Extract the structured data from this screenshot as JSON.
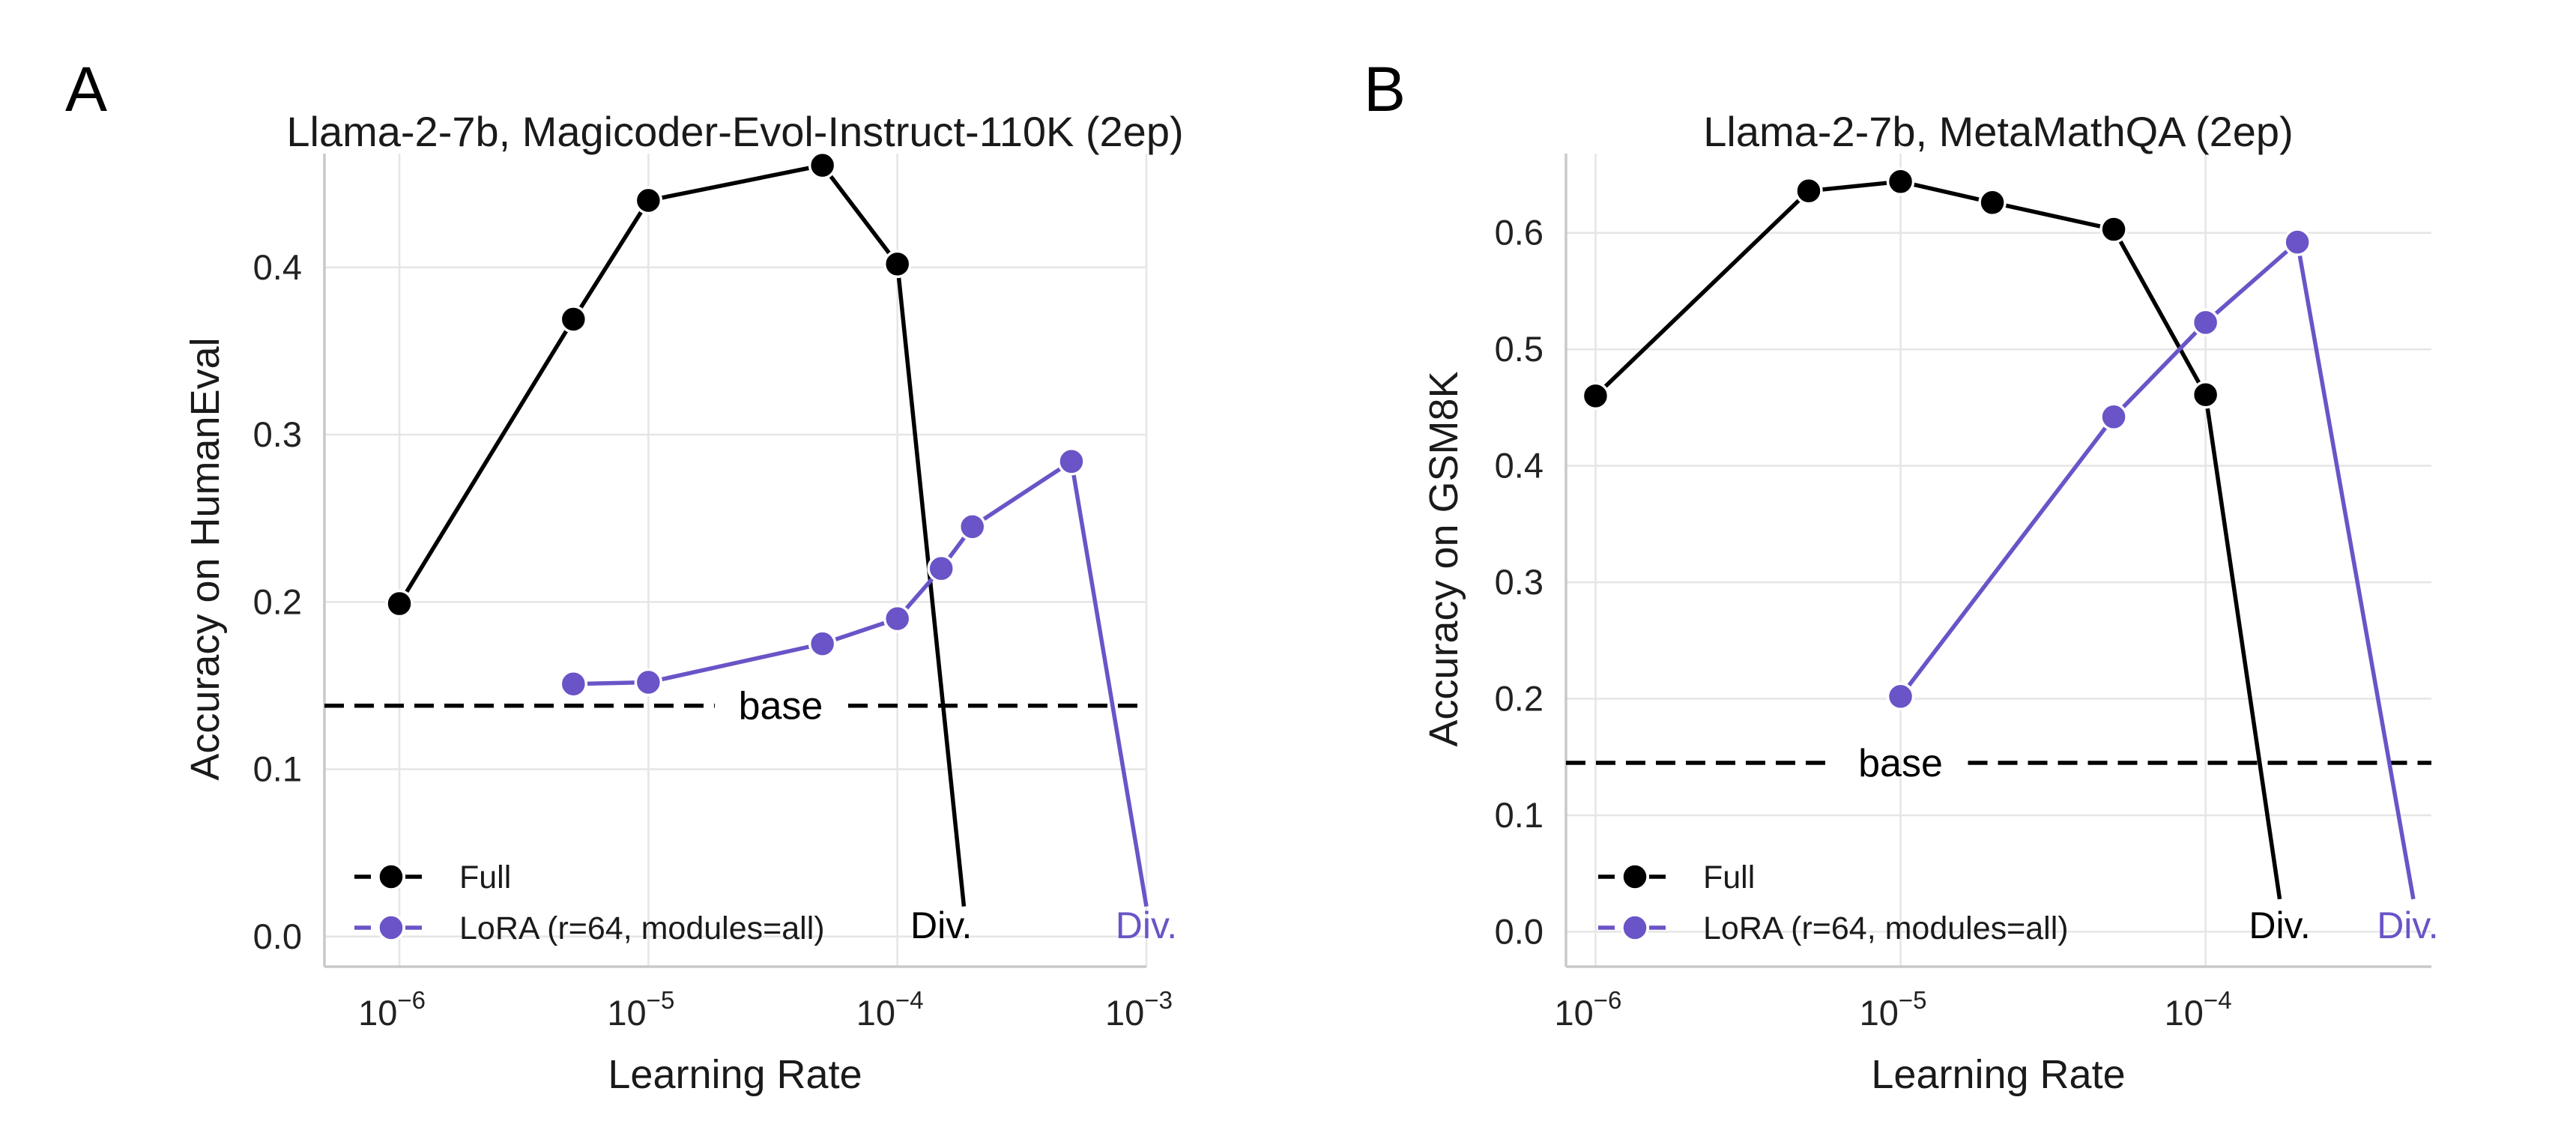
{
  "colors": {
    "full": "#000000",
    "lora": "#6a54c7",
    "base": "#000000",
    "background": "#ffffff"
  },
  "chart_data": [
    {
      "panel_label": "A",
      "type": "line",
      "title": "Llama-2-7b, Magicoder-Evol-Instruct-110K (2ep)",
      "xlabel": "Learning Rate",
      "ylabel": "Accuracy on HumanEval",
      "xscale": "log",
      "xlim": [
        5e-07,
        0.001
      ],
      "ylim": [
        -0.018,
        0.468
      ],
      "grid": true,
      "legend_position": "lower-left",
      "xticks": [
        {
          "value": 1e-06,
          "base": "10",
          "exp": "−6"
        },
        {
          "value": 1e-05,
          "base": "10",
          "exp": "−5"
        },
        {
          "value": 0.0001,
          "base": "10",
          "exp": "−4"
        },
        {
          "value": 0.001,
          "base": "10",
          "exp": "−3"
        }
      ],
      "yticks": [
        {
          "value": 0.0,
          "label": "0.0"
        },
        {
          "value": 0.1,
          "label": "0.1"
        },
        {
          "value": 0.2,
          "label": "0.2"
        },
        {
          "value": 0.3,
          "label": "0.3"
        },
        {
          "value": 0.4,
          "label": "0.4"
        }
      ],
      "baseline": {
        "value": 0.138,
        "label": "base",
        "label_x": 3.4e-05
      },
      "series": [
        {
          "name": "Full",
          "color_key": "full",
          "points": [
            {
              "x": 1e-06,
              "y": 0.199
            },
            {
              "x": 5e-06,
              "y": 0.369
            },
            {
              "x": 1e-05,
              "y": 0.44
            },
            {
              "x": 5e-05,
              "y": 0.461
            },
            {
              "x": 0.0001,
              "y": 0.402
            }
          ],
          "diverged": {
            "x": 0.000185,
            "y": 0.018
          },
          "divergence_label": "Div.",
          "divergence_label_x": 0.00015
        },
        {
          "name": "LoRA (r=64, modules=all)",
          "color_key": "lora",
          "points": [
            {
              "x": 5e-06,
              "y": 0.151
            },
            {
              "x": 1e-05,
              "y": 0.152
            },
            {
              "x": 5e-05,
              "y": 0.175
            },
            {
              "x": 0.0001,
              "y": 0.19
            },
            {
              "x": 0.00015,
              "y": 0.22
            },
            {
              "x": 0.0002,
              "y": 0.245
            },
            {
              "x": 0.0005,
              "y": 0.284
            }
          ],
          "diverged": {
            "x": 0.001,
            "y": 0.018
          },
          "divergence_label": "Div.",
          "divergence_label_x": 0.001
        }
      ]
    },
    {
      "panel_label": "B",
      "type": "line",
      "title": "Llama-2-7b, MetaMathQA (2ep)",
      "xlabel": "Learning Rate",
      "ylabel": "Accuracy on GSM8K",
      "xscale": "log",
      "xlim": [
        8e-07,
        0.00055
      ],
      "ylim": [
        -0.03,
        0.668
      ],
      "grid": true,
      "legend_position": "lower-left",
      "xticks": [
        {
          "value": 1e-06,
          "base": "10",
          "exp": "−6"
        },
        {
          "value": 1e-05,
          "base": "10",
          "exp": "−5"
        },
        {
          "value": 0.0001,
          "base": "10",
          "exp": "−4"
        }
      ],
      "yticks": [
        {
          "value": 0.0,
          "label": "0.0"
        },
        {
          "value": 0.1,
          "label": "0.1"
        },
        {
          "value": 0.2,
          "label": "0.2"
        },
        {
          "value": 0.3,
          "label": "0.3"
        },
        {
          "value": 0.4,
          "label": "0.4"
        },
        {
          "value": 0.5,
          "label": "0.5"
        },
        {
          "value": 0.6,
          "label": "0.6"
        }
      ],
      "baseline": {
        "value": 0.145,
        "label": "base",
        "label_x": 1e-05
      },
      "series": [
        {
          "name": "Full",
          "color_key": "full",
          "points": [
            {
              "x": 1e-06,
              "y": 0.46
            },
            {
              "x": 5e-06,
              "y": 0.636
            },
            {
              "x": 1e-05,
              "y": 0.644
            },
            {
              "x": 2e-05,
              "y": 0.626
            },
            {
              "x": 5e-05,
              "y": 0.603
            },
            {
              "x": 0.0001,
              "y": 0.461
            }
          ],
          "diverged": {
            "x": 0.000175,
            "y": 0.028
          },
          "divergence_label": "Div.",
          "divergence_label_x": 0.000175
        },
        {
          "name": "LoRA (r=64, modules=all)",
          "color_key": "lora",
          "points": [
            {
              "x": 1e-05,
              "y": 0.202
            },
            {
              "x": 5e-05,
              "y": 0.442
            },
            {
              "x": 0.0001,
              "y": 0.523
            },
            {
              "x": 0.0002,
              "y": 0.592
            }
          ],
          "diverged": {
            "x": 0.00048,
            "y": 0.028
          },
          "divergence_label": "Div.",
          "divergence_label_x": 0.00046
        }
      ]
    }
  ]
}
